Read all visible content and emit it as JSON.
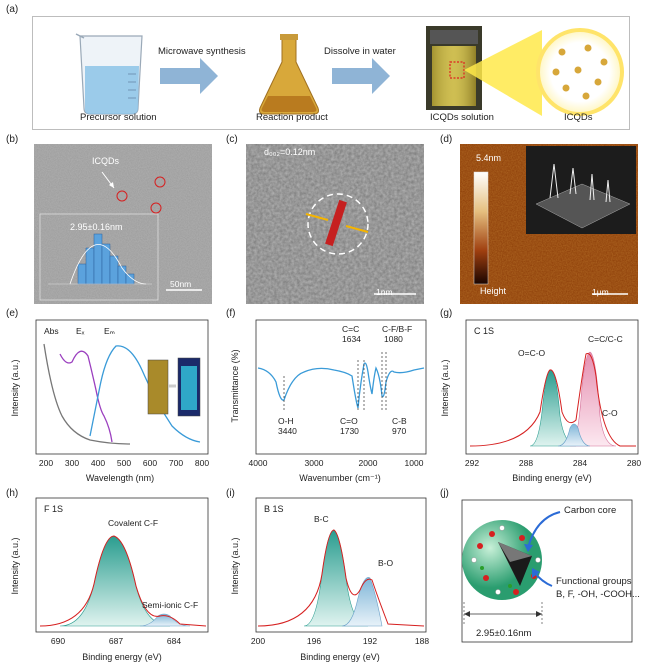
{
  "panel_a": {
    "label": "(a)",
    "precursor_label": "Precursor solution",
    "step1_label": "Microwave synthesis",
    "reaction_label": "Reaction product",
    "step2_label": "Dissolve in water",
    "solution_label": "ICQDs solution",
    "icqds_label": "ICQDs"
  },
  "panel_b": {
    "label": "(b)",
    "arrow_label": "ICQDs",
    "size_label": "2.95±0.16nm",
    "scale": "50nm"
  },
  "panel_c": {
    "label": "(c)",
    "spacing": "d₀₀₂=0.12nm",
    "scale": "1nm"
  },
  "panel_d": {
    "label": "(d)",
    "height_max": "5.4nm",
    "height_label": "Height",
    "scale": "1μm"
  },
  "panel_e": {
    "label": "(e)",
    "abs": "Abs",
    "ex": "Eₓ",
    "em": "Eₘ",
    "ylabel": "Intensity (a.u.)",
    "xlabel": "Wavelength (nm)",
    "xticks": [
      "200",
      "300",
      "400",
      "500",
      "600",
      "700",
      "800"
    ]
  },
  "panel_f": {
    "label": "(f)",
    "ylabel": "Transmittance (%)",
    "xlabel": "Wavenumber (cm⁻¹)",
    "xticks": [
      "4000",
      "3000",
      "2000",
      "1000"
    ],
    "peaks": [
      {
        "name": "O-H",
        "wn": "3440"
      },
      {
        "name": "C=C",
        "wn": "1634"
      },
      {
        "name": "C=O",
        "wn": "1730"
      },
      {
        "name": "C-F/B-F",
        "wn": "1080"
      },
      {
        "name": "C-B",
        "wn": "970"
      }
    ]
  },
  "panel_g": {
    "label": "(g)",
    "title": "C 1S",
    "ylabel": "Intensity (a.u.)",
    "xlabel": "Binding energy (eV)",
    "xticks": [
      "292",
      "288",
      "284",
      "280"
    ],
    "peaks": [
      "O=C-O",
      "C=C/C-C",
      "C-O"
    ]
  },
  "panel_h": {
    "label": "(h)",
    "title": "F 1S",
    "ylabel": "Intensity (a.u.)",
    "xlabel": "Binding energy (eV)",
    "xticks": [
      "690",
      "687",
      "684"
    ],
    "peaks": [
      "Covalent C-F",
      "Semi-ionic C-F"
    ]
  },
  "panel_i": {
    "label": "(i)",
    "title": "B 1S",
    "ylabel": "Intensity (a.u.)",
    "xlabel": "Binding energy (eV)",
    "xticks": [
      "200",
      "196",
      "192",
      "188"
    ],
    "peaks": [
      "B-C",
      "B-O"
    ]
  },
  "panel_j": {
    "label": "(j)",
    "core": "Carbon core",
    "functional": "Functional groups",
    "groups": "B, F, -OH, -COOH...",
    "size": "2.95±0.16nm"
  },
  "colors": {
    "arrow": "#8fb4d6",
    "teal": "#2a9d8f",
    "pink": "#e58fb0",
    "blue": "#3a9bd8",
    "purple": "#9b3fbf",
    "red": "#d62020"
  }
}
